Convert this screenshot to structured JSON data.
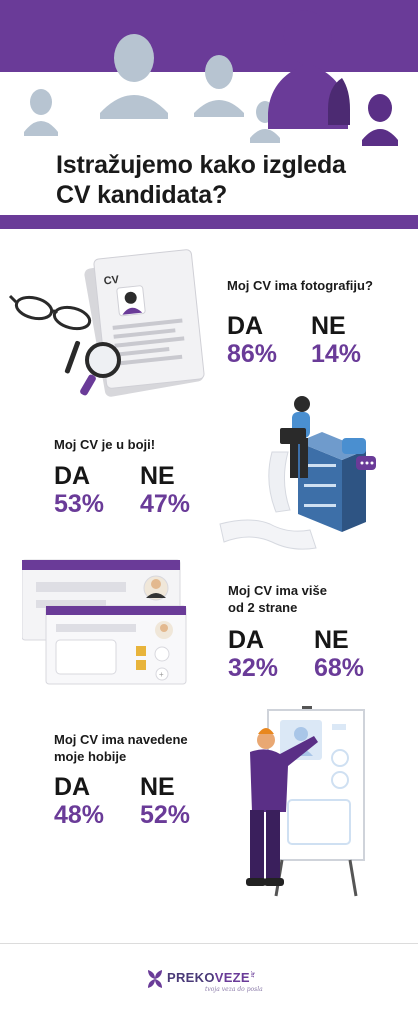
{
  "header": {
    "title_line1": "Istražujemo kako izgleda",
    "title_line2": "CV kandidata?"
  },
  "illustrations": {
    "header": "people-silhouettes-illustration",
    "stat1": "cv-document-with-glasses-and-magnifier-illustration",
    "stat2": "person-on-server-with-laptop-illustration",
    "stat3": "profile-browser-windows-illustration",
    "stat4": "person-drawing-on-board-illustration"
  },
  "stats": [
    {
      "question": "Moj CV ima fotografiju?",
      "yes_label": "DA",
      "yes_value": "86%",
      "no_label": "NE",
      "no_value": "14%"
    },
    {
      "question": "Moj CV je u boji!",
      "yes_label": "DA",
      "yes_value": "53%",
      "no_label": "NE",
      "no_value": "47%"
    },
    {
      "question_line1": "Moj CV ima više",
      "question_line2": "od 2 strane",
      "yes_label": "DA",
      "yes_value": "32%",
      "no_label": "NE",
      "no_value": "68%"
    },
    {
      "question_line1": "Moj CV ima navedene",
      "question_line2": "moje hobije",
      "yes_label": "DA",
      "yes_value": "48%",
      "no_label": "NE",
      "no_value": "52%"
    }
  ],
  "cv_card_label": "CV",
  "footer": {
    "logo_part1": "PREKO",
    "logo_part2": "VEZE",
    "logo_suffix": ".hr",
    "tagline": "tvoja veza do posla"
  },
  "colors": {
    "brand_purple": "#6a3b98",
    "silhouette_grey": "#b7c4d1",
    "text_dark": "#1a1a1a"
  }
}
